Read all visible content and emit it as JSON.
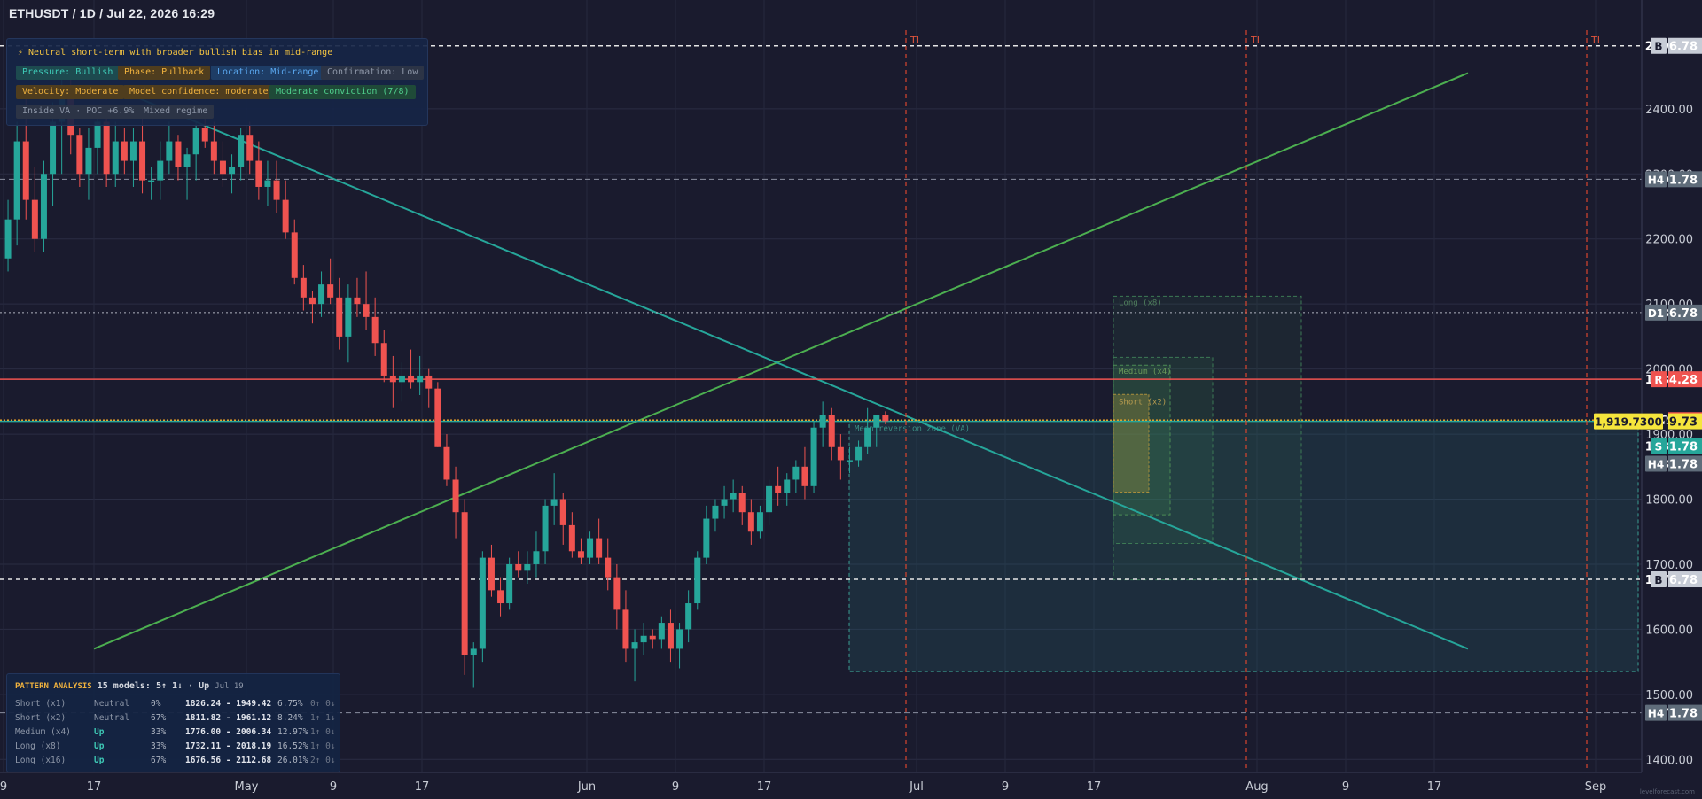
{
  "header": {
    "title": "ETHUSDT / 1D / Jul 22, 2026 16:29"
  },
  "summary": {
    "headline": "⚡  Neutral short-term with broader bullish bias in mid-range",
    "chips": [
      {
        "label": "Pressure: Bullish",
        "color": "teal"
      },
      {
        "label": "Phase: Pullback",
        "color": "orange"
      },
      {
        "label": "Location: Mid-range",
        "color": "blue"
      },
      {
        "label": "Confirmation: Low",
        "color": "gray"
      },
      {
        "label": "Velocity: Moderate",
        "color": "orange"
      },
      {
        "label": "Model confidence: moderate",
        "color": "orange"
      },
      {
        "label": "Moderate conviction (7/8)",
        "color": "green"
      },
      {
        "label": "Inside VA · POC +6.9%",
        "color": "gray"
      },
      {
        "label": "Mixed regime",
        "color": "gray"
      }
    ]
  },
  "pattern_analysis": {
    "title": "PATTERN ANALYSIS",
    "models": "15 models: 5↑ 1↓ · Up",
    "date": "Jul 19",
    "rows": [
      {
        "name": "Short (x1)",
        "dir": "Neutral",
        "pct": "0%",
        "range": "1826.24 - 1949.42",
        "chg": "6.75%",
        "arrows": "0↑ 0↓"
      },
      {
        "name": "Short (x2)",
        "dir": "Neutral",
        "pct": "67%",
        "range": "1811.82 - 1961.12",
        "chg": "8.24%",
        "arrows": "1↑ 1↓"
      },
      {
        "name": "Medium (x4)",
        "dir": "Up",
        "pct": "33%",
        "range": "1776.00 - 2006.34",
        "chg": "12.97%",
        "arrows": "1↑ 0↓"
      },
      {
        "name": "Long (x8)",
        "dir": "Up",
        "pct": "33%",
        "range": "1732.11 - 2018.19",
        "chg": "16.52%",
        "arrows": "1↑ 0↓"
      },
      {
        "name": "Long (x16)",
        "dir": "Up",
        "pct": "67%",
        "range": "1676.56 - 2112.68",
        "chg": "26.01%",
        "arrows": "2↑ 0↓"
      }
    ]
  },
  "chart_data": {
    "type": "candlestick",
    "symbol": "ETHUSDT",
    "timeframe": "1D",
    "ylim": [
      1380,
      2540
    ],
    "y_ticks": [
      1400,
      1500,
      1600,
      1700,
      1800,
      1900,
      2000,
      2100,
      2200,
      2300,
      2400
    ],
    "x_tick_labels": [
      "9",
      "17",
      "May",
      "9",
      "17",
      "Jun",
      "9",
      "17",
      "Jul",
      "9",
      "17",
      "Aug",
      "9",
      "17",
      "Sep"
    ],
    "candles_approx": [
      [
        2170,
        2260,
        2150,
        2230
      ],
      [
        2230,
        2380,
        2190,
        2350
      ],
      [
        2350,
        2420,
        2230,
        2260
      ],
      [
        2260,
        2310,
        2180,
        2200
      ],
      [
        2200,
        2320,
        2180,
        2300
      ],
      [
        2300,
        2410,
        2250,
        2380
      ],
      [
        2380,
        2450,
        2300,
        2420
      ],
      [
        2420,
        2450,
        2330,
        2360
      ],
      [
        2360,
        2370,
        2280,
        2300
      ],
      [
        2300,
        2370,
        2260,
        2340
      ],
      [
        2340,
        2400,
        2300,
        2380
      ],
      [
        2380,
        2390,
        2280,
        2300
      ],
      [
        2300,
        2380,
        2280,
        2350
      ],
      [
        2350,
        2370,
        2300,
        2320
      ],
      [
        2320,
        2370,
        2280,
        2350
      ],
      [
        2350,
        2400,
        2270,
        2290
      ],
      [
        2290,
        2310,
        2260,
        2290
      ],
      [
        2290,
        2350,
        2260,
        2320
      ],
      [
        2320,
        2380,
        2300,
        2350
      ],
      [
        2350,
        2360,
        2290,
        2310
      ],
      [
        2310,
        2340,
        2260,
        2330
      ],
      [
        2330,
        2380,
        2290,
        2370
      ],
      [
        2370,
        2400,
        2340,
        2350
      ],
      [
        2350,
        2380,
        2300,
        2320
      ],
      [
        2320,
        2350,
        2280,
        2300
      ],
      [
        2300,
        2330,
        2270,
        2310
      ],
      [
        2310,
        2370,
        2290,
        2360
      ],
      [
        2360,
        2380,
        2300,
        2320
      ],
      [
        2320,
        2350,
        2260,
        2280
      ],
      [
        2280,
        2320,
        2250,
        2290
      ],
      [
        2290,
        2320,
        2240,
        2260
      ],
      [
        2260,
        2290,
        2200,
        2210
      ],
      [
        2210,
        2230,
        2130,
        2140
      ],
      [
        2140,
        2160,
        2090,
        2110
      ],
      [
        2110,
        2120,
        2070,
        2100
      ],
      [
        2100,
        2150,
        2080,
        2130
      ],
      [
        2130,
        2170,
        2100,
        2110
      ],
      [
        2110,
        2140,
        2030,
        2050
      ],
      [
        2050,
        2130,
        2010,
        2110
      ],
      [
        2110,
        2140,
        2080,
        2100
      ],
      [
        2100,
        2150,
        2060,
        2080
      ],
      [
        2080,
        2110,
        2020,
        2040
      ],
      [
        2040,
        2060,
        1980,
        1990
      ],
      [
        1990,
        2020,
        1940,
        1980
      ],
      [
        1980,
        2010,
        1950,
        1990
      ],
      [
        1990,
        2030,
        1970,
        1980
      ],
      [
        1980,
        2020,
        1960,
        1990
      ],
      [
        1990,
        2000,
        1940,
        1970
      ],
      [
        1970,
        1980,
        1880,
        1880
      ],
      [
        1880,
        1900,
        1820,
        1830
      ],
      [
        1830,
        1850,
        1740,
        1780
      ],
      [
        1780,
        1800,
        1530,
        1560
      ],
      [
        1560,
        1580,
        1510,
        1570
      ],
      [
        1570,
        1720,
        1550,
        1710
      ],
      [
        1710,
        1730,
        1650,
        1660
      ],
      [
        1660,
        1680,
        1620,
        1640
      ],
      [
        1640,
        1710,
        1630,
        1700
      ],
      [
        1700,
        1720,
        1680,
        1690
      ],
      [
        1690,
        1720,
        1670,
        1700
      ],
      [
        1700,
        1750,
        1680,
        1720
      ],
      [
        1720,
        1800,
        1700,
        1790
      ],
      [
        1790,
        1840,
        1760,
        1800
      ],
      [
        1800,
        1810,
        1730,
        1760
      ],
      [
        1760,
        1780,
        1710,
        1720
      ],
      [
        1720,
        1740,
        1700,
        1710
      ],
      [
        1710,
        1750,
        1700,
        1740
      ],
      [
        1740,
        1770,
        1700,
        1710
      ],
      [
        1710,
        1740,
        1660,
        1680
      ],
      [
        1680,
        1700,
        1600,
        1630
      ],
      [
        1630,
        1660,
        1550,
        1570
      ],
      [
        1570,
        1600,
        1520,
        1580
      ],
      [
        1580,
        1610,
        1560,
        1590
      ],
      [
        1590,
        1600,
        1570,
        1585
      ],
      [
        1585,
        1620,
        1570,
        1610
      ],
      [
        1610,
        1630,
        1550,
        1570
      ],
      [
        1570,
        1610,
        1540,
        1600
      ],
      [
        1600,
        1660,
        1580,
        1640
      ],
      [
        1640,
        1720,
        1630,
        1710
      ],
      [
        1710,
        1790,
        1700,
        1770
      ],
      [
        1770,
        1800,
        1750,
        1790
      ],
      [
        1790,
        1820,
        1770,
        1800
      ],
      [
        1800,
        1830,
        1780,
        1810
      ],
      [
        1810,
        1820,
        1760,
        1780
      ],
      [
        1780,
        1800,
        1730,
        1750
      ],
      [
        1750,
        1790,
        1740,
        1780
      ],
      [
        1780,
        1830,
        1760,
        1820
      ],
      [
        1820,
        1850,
        1790,
        1810
      ],
      [
        1810,
        1840,
        1790,
        1830
      ],
      [
        1830,
        1860,
        1810,
        1850
      ],
      [
        1850,
        1880,
        1800,
        1820
      ],
      [
        1820,
        1920,
        1810,
        1910
      ],
      [
        1910,
        1950,
        1880,
        1930
      ],
      [
        1930,
        1940,
        1860,
        1880
      ],
      [
        1880,
        1900,
        1830,
        1860
      ],
      [
        1860,
        1880,
        1840,
        1860
      ],
      [
        1860,
        1890,
        1850,
        1880
      ],
      [
        1880,
        1940,
        1870,
        1910
      ],
      [
        1910,
        1930,
        1880,
        1930
      ],
      [
        1930,
        1935,
        1915,
        1920
      ]
    ],
    "horizontal_levels": [
      {
        "tag": "B",
        "price": "2496.78",
        "style": "dashed-white"
      },
      {
        "tag": "H4",
        "price": "2291.78",
        "style": "dashed-gray"
      },
      {
        "tag": "D1",
        "price": "2086.78",
        "style": "dotted-gray"
      },
      {
        "tag": "R",
        "price": "1984.28",
        "style": "solid-red"
      },
      {
        "tag": "",
        "price": "1921.57",
        "style": "dotted-orange"
      },
      {
        "tag": "1,919.7300",
        "price": "1919.73",
        "style": "solid-teal"
      },
      {
        "tag": "S",
        "price": "1881.78",
        "style": "teal"
      },
      {
        "tag": "H4",
        "price": "1881.78",
        "style": "gray"
      },
      {
        "tag": "B",
        "price": "1676.78",
        "style": "dashed-white"
      },
      {
        "tag": "H4",
        "price": "1471.78",
        "style": "dashed-gray"
      }
    ],
    "vertical_markers": [
      "TL",
      "TL",
      "TL"
    ],
    "zone_labels": [
      "Long (x8)",
      "Medium (x4)",
      "Short (x2)",
      "Mean reversion zone (VA)"
    ],
    "watermark": "levelforecast.com"
  }
}
